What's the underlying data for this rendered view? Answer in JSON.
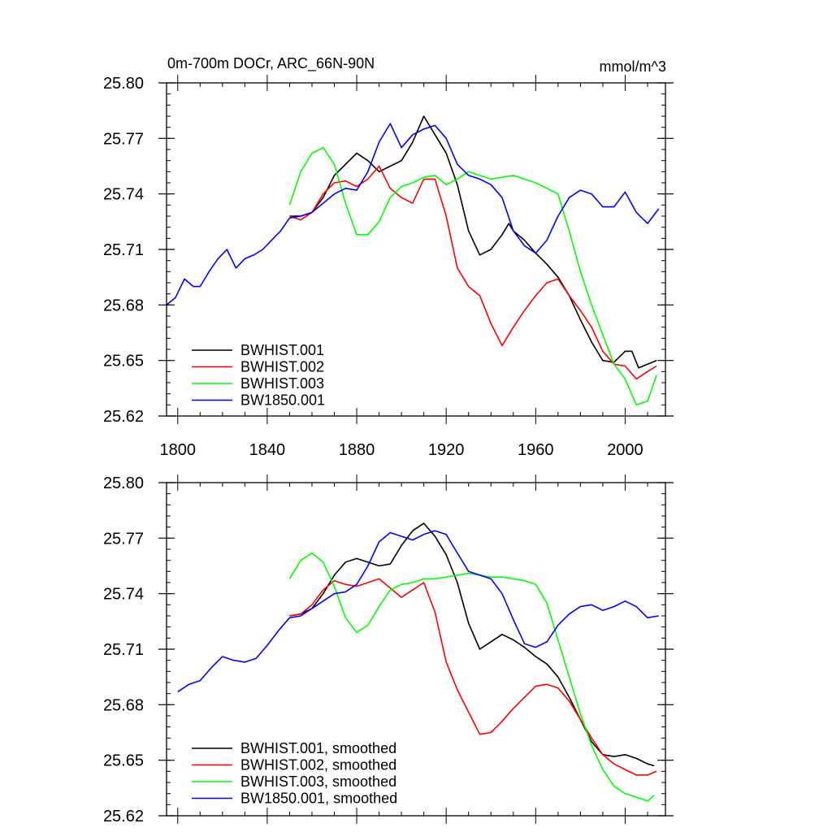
{
  "chart_data": [
    {
      "type": "line",
      "title": "0m-700m DOCr, ARC_66N-90N",
      "units": "mmol/m^3",
      "xlim": [
        1795,
        2018
      ],
      "ylim": [
        25.62,
        25.8
      ],
      "xticks": [
        1800,
        1840,
        1880,
        1920,
        1960,
        2000
      ],
      "yticks": [
        25.62,
        25.65,
        25.68,
        25.71,
        25.74,
        25.77,
        25.8
      ],
      "ytick_labels": [
        "25.62",
        "25.65",
        "25.68",
        "25.71",
        "25.74",
        "25.77",
        "25.80"
      ],
      "legend": "bottom-left",
      "series": [
        {
          "name": "BWHIST.001",
          "color": "#000000",
          "x": [
            1850,
            1855,
            1860,
            1865,
            1870,
            1875,
            1880,
            1885,
            1890,
            1895,
            1900,
            1905,
            1910,
            1915,
            1920,
            1925,
            1930,
            1935,
            1940,
            1945,
            1948,
            1950,
            1955,
            1960,
            1965,
            1970,
            1975,
            1980,
            1985,
            1990,
            1995,
            2000,
            2003,
            2006,
            2010,
            2014
          ],
          "y": [
            25.728,
            25.728,
            25.73,
            25.738,
            25.75,
            25.756,
            25.762,
            25.758,
            25.752,
            25.755,
            25.758,
            25.768,
            25.782,
            25.772,
            25.762,
            25.745,
            25.72,
            25.707,
            25.71,
            25.718,
            25.724,
            25.72,
            25.715,
            25.708,
            25.702,
            25.695,
            25.685,
            25.672,
            25.66,
            25.65,
            25.649,
            25.655,
            25.655,
            25.646,
            25.648,
            25.65
          ]
        },
        {
          "name": "BWHIST.002",
          "color": "#ff0000",
          "x": [
            1850,
            1855,
            1860,
            1865,
            1870,
            1875,
            1880,
            1885,
            1890,
            1895,
            1900,
            1905,
            1910,
            1915,
            1920,
            1925,
            1930,
            1935,
            1940,
            1945,
            1950,
            1955,
            1960,
            1965,
            1970,
            1975,
            1980,
            1985,
            1990,
            1995,
            2000,
            2005,
            2010,
            2014
          ],
          "y": [
            25.728,
            25.726,
            25.73,
            25.74,
            25.746,
            25.747,
            25.744,
            25.748,
            25.755,
            25.743,
            25.738,
            25.735,
            25.748,
            25.748,
            25.728,
            25.7,
            25.69,
            25.685,
            25.67,
            25.658,
            25.668,
            25.677,
            25.685,
            25.692,
            25.694,
            25.685,
            25.677,
            25.668,
            25.655,
            25.648,
            25.647,
            25.64,
            25.644,
            25.647
          ]
        },
        {
          "name": "BWHIST.003",
          "color": "#00ff00",
          "x": [
            1850,
            1855,
            1860,
            1865,
            1870,
            1875,
            1880,
            1885,
            1890,
            1895,
            1900,
            1905,
            1910,
            1915,
            1920,
            1925,
            1930,
            1935,
            1940,
            1945,
            1950,
            1955,
            1960,
            1965,
            1970,
            1975,
            1980,
            1985,
            1990,
            1995,
            2000,
            2005,
            2010,
            2014
          ],
          "y": [
            25.734,
            25.752,
            25.762,
            25.765,
            25.756,
            25.735,
            25.718,
            25.718,
            25.725,
            25.738,
            25.744,
            25.746,
            25.749,
            25.75,
            25.745,
            25.748,
            25.752,
            25.75,
            25.748,
            25.749,
            25.75,
            25.748,
            25.746,
            25.743,
            25.74,
            25.72,
            25.698,
            25.68,
            25.664,
            25.648,
            25.64,
            25.626,
            25.628,
            25.642
          ]
        },
        {
          "name": "BW1850.001",
          "color": "#0000ff",
          "x": [
            1795,
            1799,
            1803,
            1807,
            1810,
            1814,
            1818,
            1822,
            1826,
            1830,
            1834,
            1838,
            1842,
            1846,
            1850,
            1855,
            1860,
            1865,
            1870,
            1875,
            1880,
            1885,
            1890,
            1895,
            1900,
            1905,
            1910,
            1915,
            1920,
            1925,
            1930,
            1935,
            1940,
            1945,
            1950,
            1955,
            1960,
            1965,
            1970,
            1975,
            1980,
            1985,
            1990,
            1995,
            2000,
            2005,
            2010,
            2015
          ],
          "y": [
            25.68,
            25.684,
            25.694,
            25.69,
            25.69,
            25.698,
            25.705,
            25.71,
            25.7,
            25.705,
            25.707,
            25.71,
            25.715,
            25.72,
            25.727,
            25.728,
            25.73,
            25.735,
            25.74,
            25.743,
            25.742,
            25.752,
            25.768,
            25.778,
            25.765,
            25.772,
            25.775,
            25.777,
            25.77,
            25.756,
            25.75,
            25.748,
            25.745,
            25.738,
            25.72,
            25.712,
            25.708,
            25.715,
            25.728,
            25.738,
            25.742,
            25.74,
            25.733,
            25.733,
            25.741,
            25.73,
            25.724,
            25.732
          ]
        }
      ]
    },
    {
      "type": "line",
      "title": "",
      "xlim": [
        1795,
        2018
      ],
      "ylim": [
        25.62,
        25.8
      ],
      "xticks": [
        1800,
        1840,
        1880,
        1920,
        1960,
        2000
      ],
      "yticks": [
        25.62,
        25.65,
        25.68,
        25.71,
        25.74,
        25.77,
        25.8
      ],
      "ytick_labels": [
        "25.62",
        "25.65",
        "25.68",
        "25.71",
        "25.74",
        "25.77",
        "25.80"
      ],
      "legend": "bottom-left",
      "series": [
        {
          "name": "BWHIST.001, smoothed",
          "color": "#000000",
          "x": [
            1850,
            1855,
            1860,
            1865,
            1870,
            1875,
            1880,
            1885,
            1890,
            1895,
            1900,
            1905,
            1910,
            1915,
            1920,
            1925,
            1930,
            1935,
            1940,
            1945,
            1950,
            1955,
            1960,
            1965,
            1970,
            1975,
            1980,
            1985,
            1990,
            1995,
            2000,
            2005,
            2010,
            2013
          ],
          "y": [
            25.728,
            25.729,
            25.732,
            25.74,
            25.75,
            25.757,
            25.759,
            25.757,
            25.755,
            25.756,
            25.766,
            25.774,
            25.778,
            25.771,
            25.761,
            25.746,
            25.724,
            25.71,
            25.714,
            25.718,
            25.715,
            25.711,
            25.706,
            25.702,
            25.695,
            25.684,
            25.672,
            25.66,
            25.653,
            25.652,
            25.653,
            25.651,
            25.648,
            25.647
          ]
        },
        {
          "name": "BWHIST.002, smoothed",
          "color": "#ff0000",
          "x": [
            1850,
            1855,
            1860,
            1865,
            1870,
            1875,
            1880,
            1885,
            1890,
            1895,
            1900,
            1905,
            1910,
            1915,
            1920,
            1925,
            1930,
            1935,
            1940,
            1945,
            1950,
            1955,
            1960,
            1965,
            1970,
            1975,
            1980,
            1985,
            1990,
            1995,
            2000,
            2005,
            2010,
            2014
          ],
          "y": [
            25.728,
            25.729,
            25.734,
            25.742,
            25.747,
            25.745,
            25.744,
            25.746,
            25.748,
            25.743,
            25.738,
            25.742,
            25.746,
            25.73,
            25.703,
            25.688,
            25.676,
            25.664,
            25.665,
            25.671,
            25.678,
            25.684,
            25.69,
            25.691,
            25.689,
            25.682,
            25.672,
            25.662,
            25.653,
            25.648,
            25.645,
            25.642,
            25.642,
            25.644
          ]
        },
        {
          "name": "BWHIST.003, smoothed",
          "color": "#00ff00",
          "x": [
            1850,
            1855,
            1860,
            1865,
            1870,
            1875,
            1880,
            1885,
            1890,
            1895,
            1900,
            1905,
            1910,
            1915,
            1920,
            1925,
            1930,
            1935,
            1940,
            1945,
            1950,
            1955,
            1960,
            1965,
            1970,
            1975,
            1980,
            1985,
            1990,
            1995,
            2000,
            2005,
            2010,
            2013
          ],
          "y": [
            25.748,
            25.758,
            25.762,
            25.757,
            25.744,
            25.727,
            25.719,
            25.723,
            25.733,
            25.742,
            25.745,
            25.746,
            25.748,
            25.748,
            25.749,
            25.75,
            25.751,
            25.75,
            25.749,
            25.749,
            25.748,
            25.747,
            25.745,
            25.735,
            25.715,
            25.695,
            25.675,
            25.658,
            25.645,
            25.636,
            25.632,
            25.63,
            25.628,
            25.631
          ]
        },
        {
          "name": "BW1850.001, smoothed",
          "color": "#0000ff",
          "x": [
            1800,
            1805,
            1810,
            1815,
            1820,
            1825,
            1830,
            1835,
            1840,
            1845,
            1850,
            1855,
            1860,
            1865,
            1870,
            1875,
            1880,
            1885,
            1890,
            1895,
            1900,
            1905,
            1910,
            1915,
            1920,
            1925,
            1930,
            1935,
            1940,
            1945,
            1950,
            1955,
            1960,
            1965,
            1970,
            1975,
            1980,
            1985,
            1990,
            1995,
            2000,
            2005,
            2010,
            2015
          ],
          "y": [
            25.687,
            25.691,
            25.693,
            25.7,
            25.706,
            25.704,
            25.703,
            25.705,
            25.712,
            25.72,
            25.727,
            25.728,
            25.732,
            25.736,
            25.74,
            25.741,
            25.745,
            25.755,
            25.768,
            25.773,
            25.771,
            25.769,
            25.772,
            25.774,
            25.772,
            25.762,
            25.752,
            25.75,
            25.748,
            25.74,
            25.726,
            25.713,
            25.711,
            25.714,
            25.723,
            25.729,
            25.733,
            25.734,
            25.731,
            25.733,
            25.736,
            25.733,
            25.727,
            25.728
          ]
        }
      ]
    }
  ]
}
